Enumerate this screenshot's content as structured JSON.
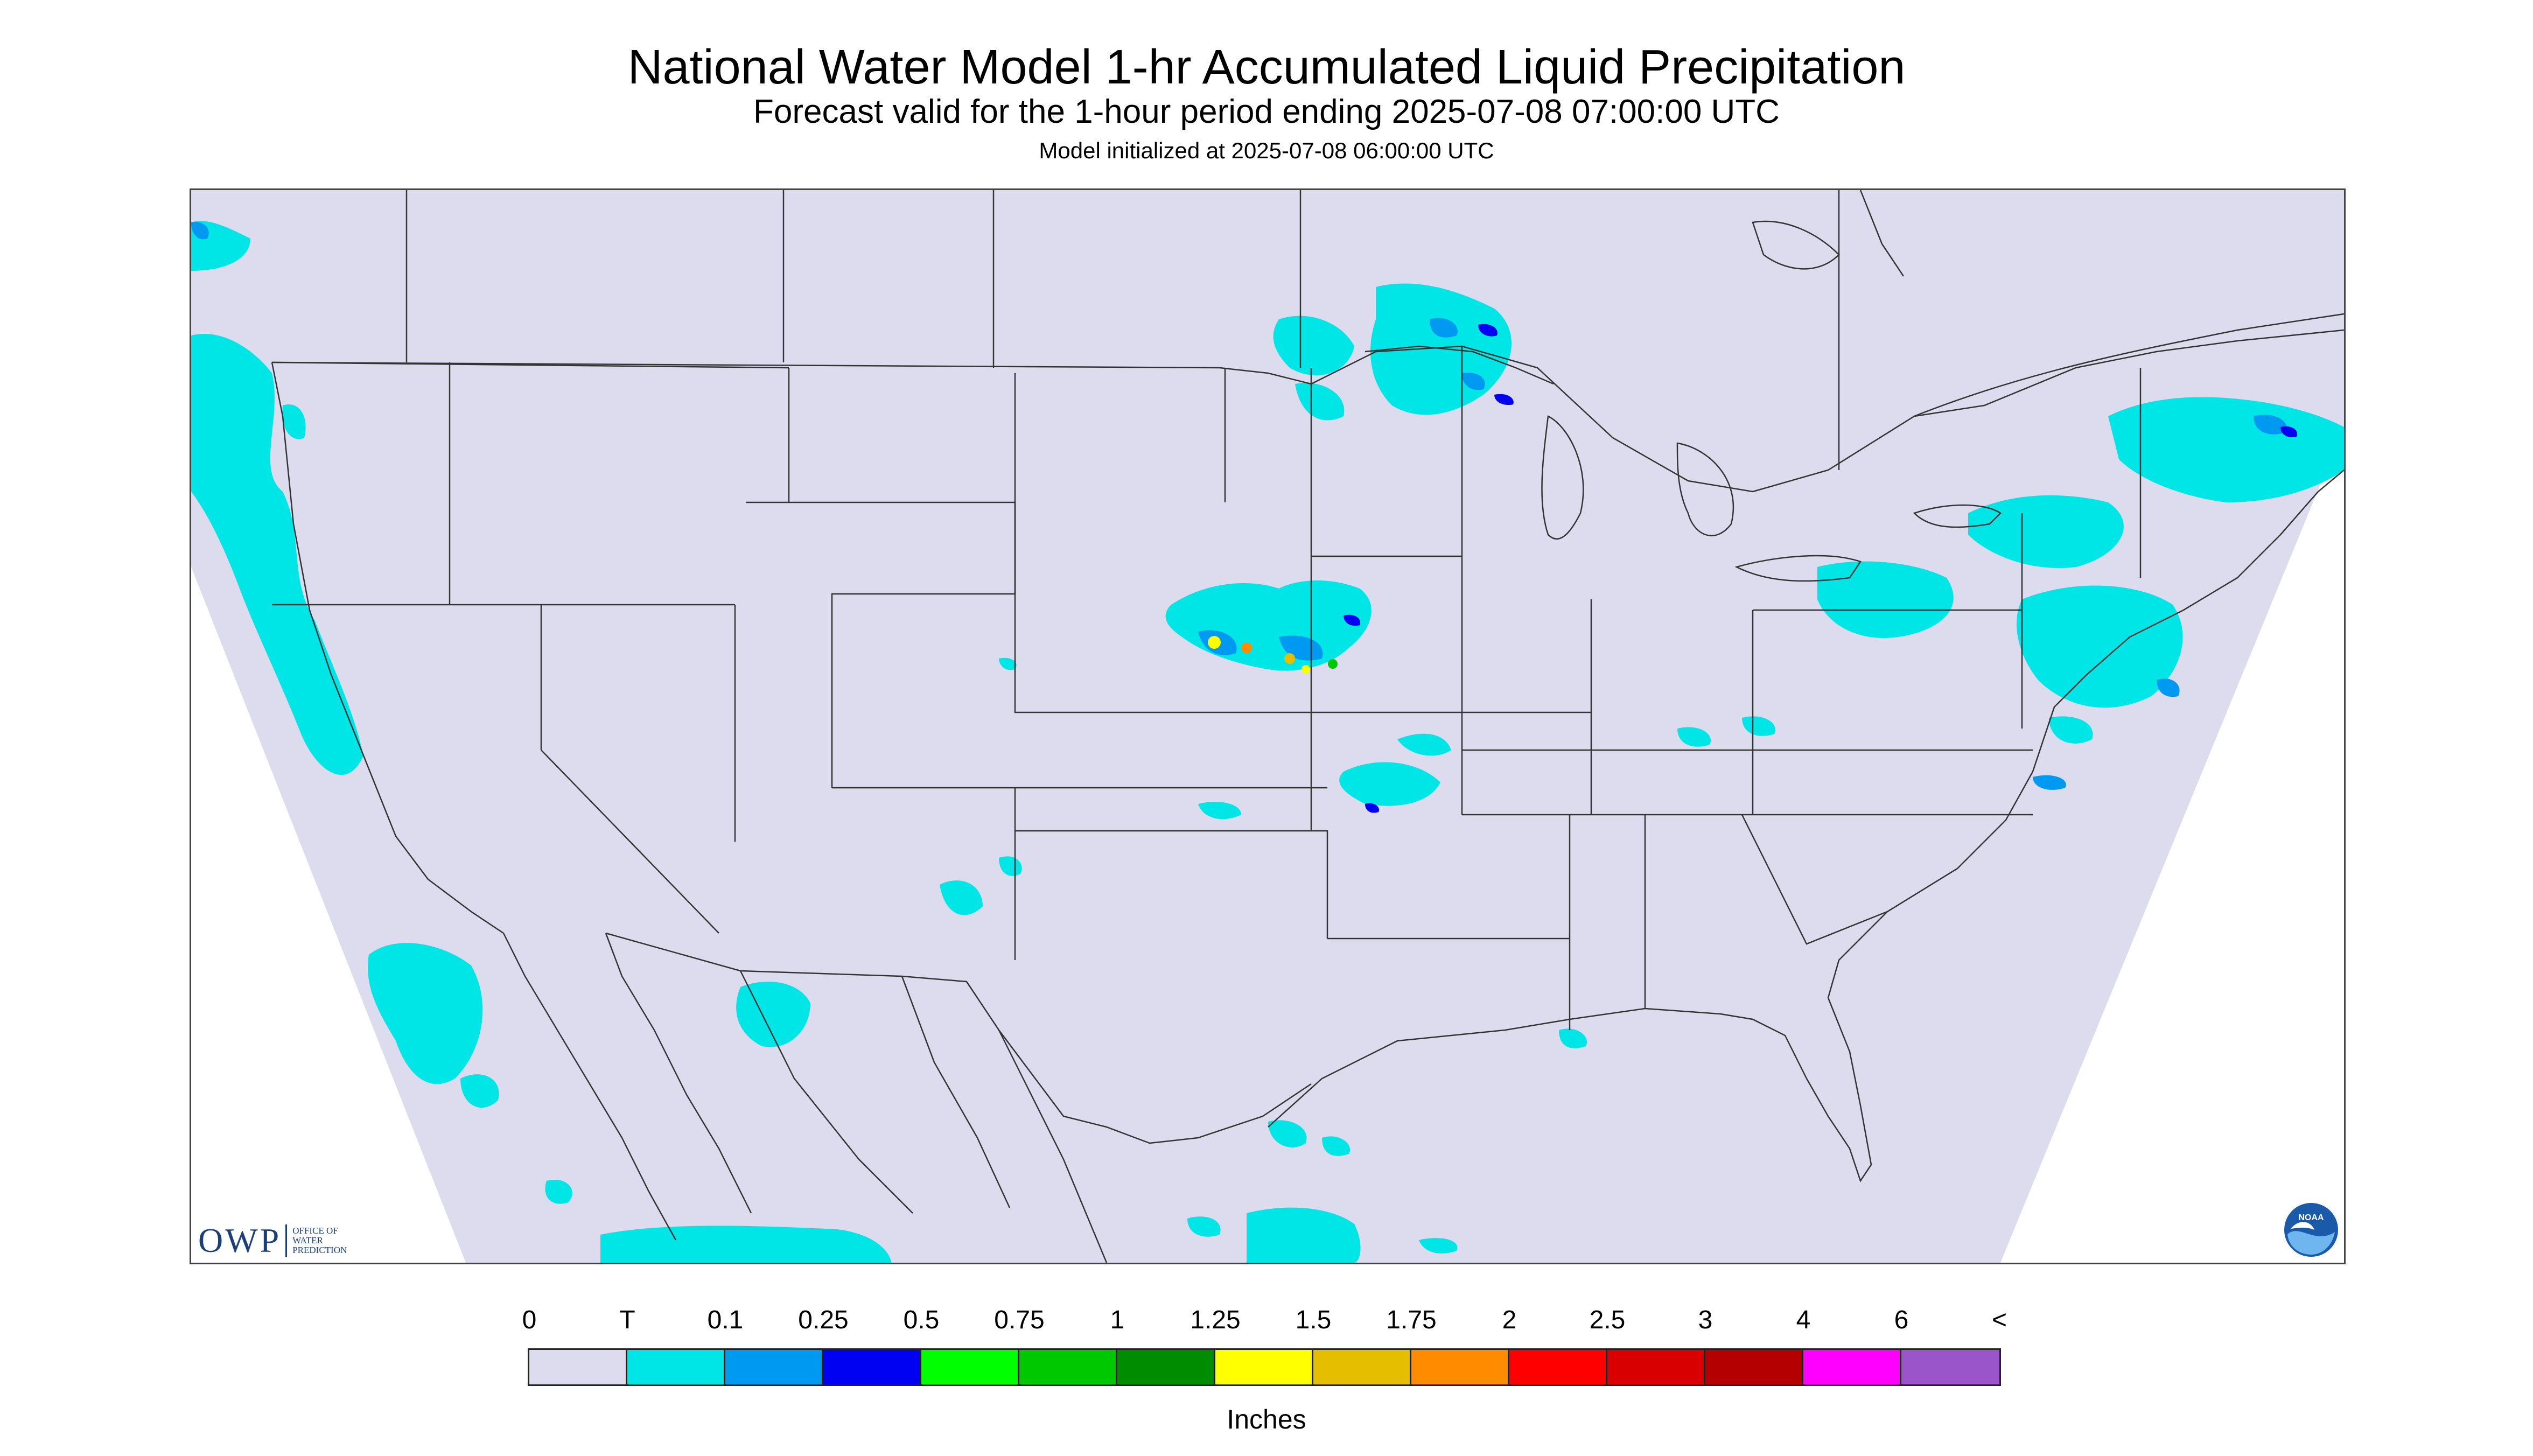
{
  "header": {
    "title": "National Water Model 1-hr Accumulated Liquid Precipitation",
    "subtitle": "Forecast valid for the 1-hour period ending 2025-07-08 07:00:00 UTC",
    "init_line": "Model initialized at 2025-07-08 06:00:00 UTC"
  },
  "map": {
    "background_color": "#dcdcee",
    "outside_color": "#ffffff",
    "boundary_color": "#333333"
  },
  "logos": {
    "owp_letters": "OWP",
    "owp_name": "OFFICE OF WATER PREDICTION",
    "owp_color": "#1b3f77",
    "noaa_label": "NOAA"
  },
  "legend": {
    "ticks": [
      "0",
      "T",
      "0.1",
      "0.25",
      "0.5",
      "0.75",
      "1",
      "1.25",
      "1.5",
      "1.75",
      "2",
      "2.5",
      "3",
      "4",
      "6",
      "<"
    ],
    "colors": [
      "#dcdcee",
      "#00e6e6",
      "#0099f2",
      "#0000f2",
      "#00ff00",
      "#00c800",
      "#008c00",
      "#ffff00",
      "#e6be00",
      "#ff8c00",
      "#ff0000",
      "#d80000",
      "#b40000",
      "#ff00ff",
      "#9955c9"
    ],
    "units": "Inches"
  }
}
